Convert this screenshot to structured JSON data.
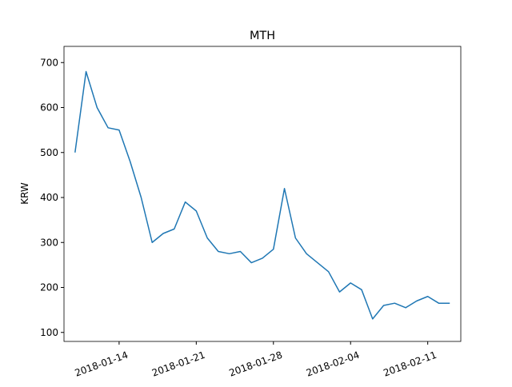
{
  "chart_data": {
    "type": "line",
    "title": "MTH",
    "ylabel": "KRW",
    "x": [
      "2018-01-10",
      "2018-01-11",
      "2018-01-12",
      "2018-01-13",
      "2018-01-14",
      "2018-01-15",
      "2018-01-16",
      "2018-01-17",
      "2018-01-18",
      "2018-01-19",
      "2018-01-20",
      "2018-01-21",
      "2018-01-22",
      "2018-01-23",
      "2018-01-24",
      "2018-01-25",
      "2018-01-26",
      "2018-01-27",
      "2018-01-28",
      "2018-01-29",
      "2018-01-30",
      "2018-01-31",
      "2018-02-01",
      "2018-02-02",
      "2018-02-03",
      "2018-02-04",
      "2018-02-05",
      "2018-02-06",
      "2018-02-07",
      "2018-02-08",
      "2018-02-09",
      "2018-02-10",
      "2018-02-11",
      "2018-02-12",
      "2018-02-13"
    ],
    "series": [
      {
        "name": "MTH",
        "color": "#1f77b4",
        "values": [
          500,
          680,
          600,
          555,
          550,
          480,
          400,
          300,
          320,
          330,
          390,
          370,
          310,
          280,
          275,
          280,
          255,
          265,
          285,
          420,
          310,
          275,
          255,
          235,
          190,
          210,
          195,
          130,
          160,
          165,
          155,
          170,
          180,
          165,
          165
        ]
      }
    ],
    "xlim": [
      "2018-01-09",
      "2018-02-14"
    ],
    "xticks": [
      "2018-01-14",
      "2018-01-21",
      "2018-01-28",
      "2018-02-04",
      "2018-02-11"
    ],
    "ylim": [
      80,
      736
    ],
    "yticks": [
      100,
      200,
      300,
      400,
      500,
      600,
      700
    ]
  }
}
